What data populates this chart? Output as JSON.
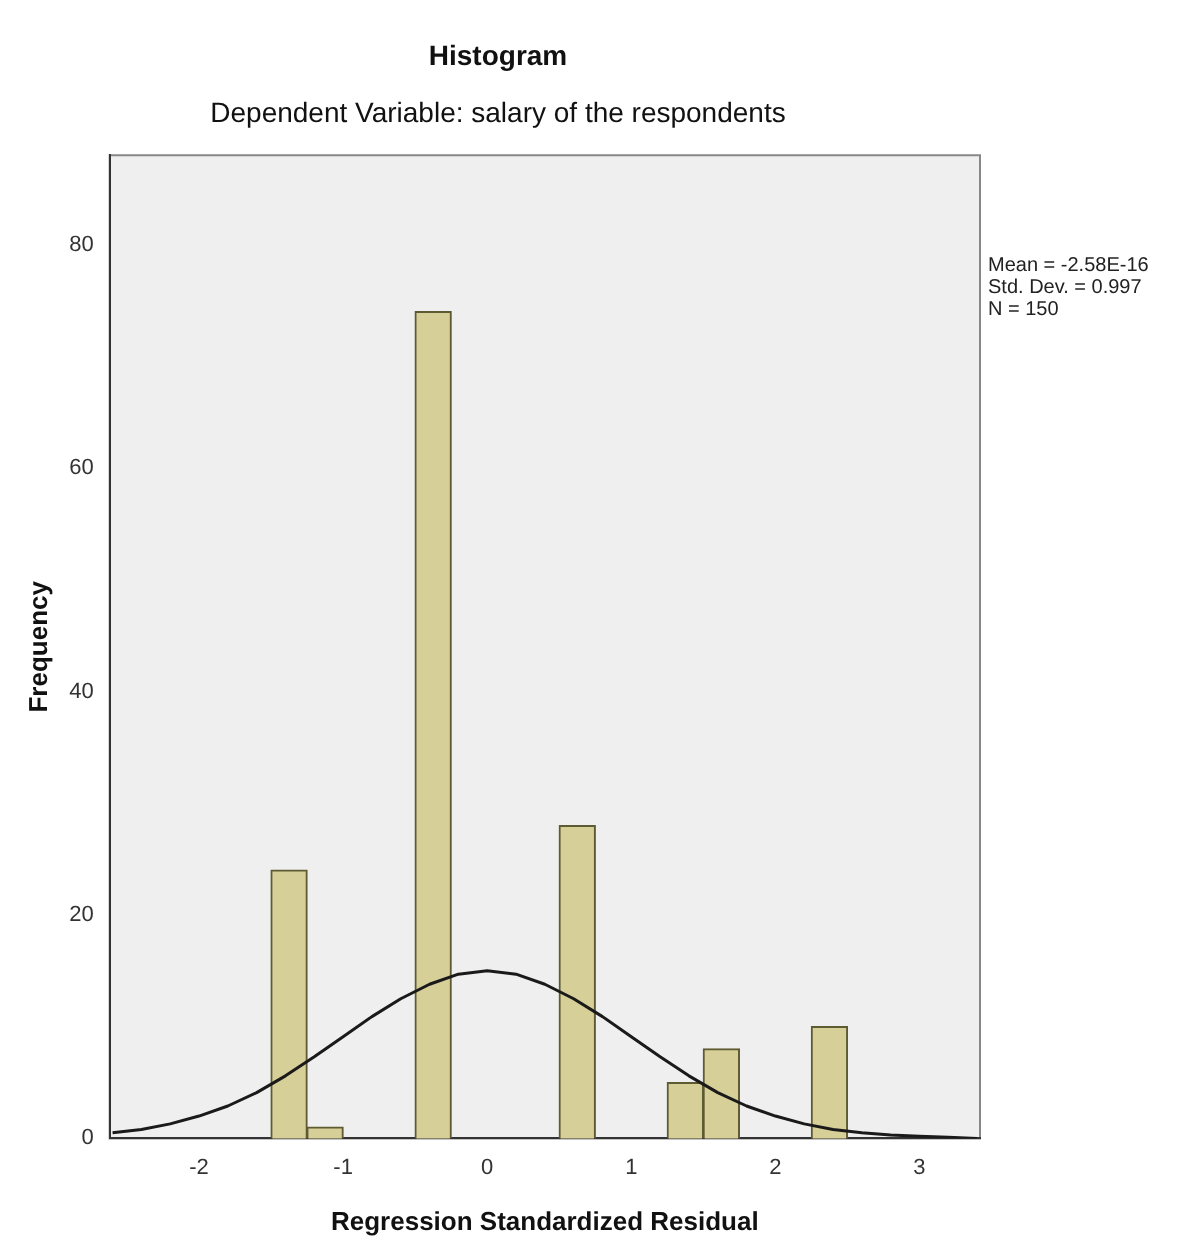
{
  "chart_data": {
    "type": "histogram",
    "title": "Histogram",
    "subtitle": "Dependent Variable: salary of the respondents",
    "xlabel": "Regression Standardized Residual",
    "ylabel": "Frequency",
    "xlim": [
      -2.62,
      3.42
    ],
    "xticks": [
      -2,
      -1,
      0,
      1,
      2,
      3
    ],
    "ylim": [
      0,
      88
    ],
    "yticks": [
      0,
      20,
      40,
      60,
      80
    ],
    "grid": false,
    "legend": false,
    "marker": "none",
    "series": [
      {
        "type": "histogram",
        "color": "#d6cf98",
        "bins": [
          -1.5,
          -1.25,
          -1,
          -0.75,
          -0.5,
          -0.25,
          0,
          0.25,
          0.5,
          0.75,
          1,
          1.25,
          1.5,
          1.75,
          2,
          2.25,
          2.5
        ],
        "values": [
          24,
          1,
          0,
          0,
          74,
          0,
          0,
          0,
          28,
          0,
          0,
          5,
          8,
          0,
          0,
          10
        ]
      },
      {
        "type": "line",
        "color": "#1a1a1a",
        "x": [
          -2.6,
          -2.4,
          -2.2,
          -2.0,
          -1.8,
          -1.6,
          -1.4,
          -1.2,
          -1.0,
          -0.8,
          -0.6,
          -0.4,
          -0.2,
          0,
          0.2,
          0.4,
          0.6,
          0.8,
          1.0,
          1.2,
          1.4,
          1.6,
          1.8,
          2.0,
          2.2,
          2.4,
          2.6,
          2.8,
          3.0,
          3.2,
          3.4
        ],
        "values": [
          0.5,
          0.8,
          1.3,
          2.0,
          2.9,
          4.1,
          5.6,
          7.3,
          9.1,
          10.9,
          12.5,
          13.8,
          14.7,
          15,
          14.7,
          13.8,
          12.5,
          10.9,
          9.1,
          7.3,
          5.6,
          4.1,
          2.9,
          2.0,
          1.3,
          0.8,
          0.5,
          0.3,
          0.2,
          0.1,
          0.0
        ]
      }
    ],
    "annotations": [
      "Mean = -2.58E-16",
      "Std. Dev. = 0.997",
      "N = 150"
    ]
  }
}
